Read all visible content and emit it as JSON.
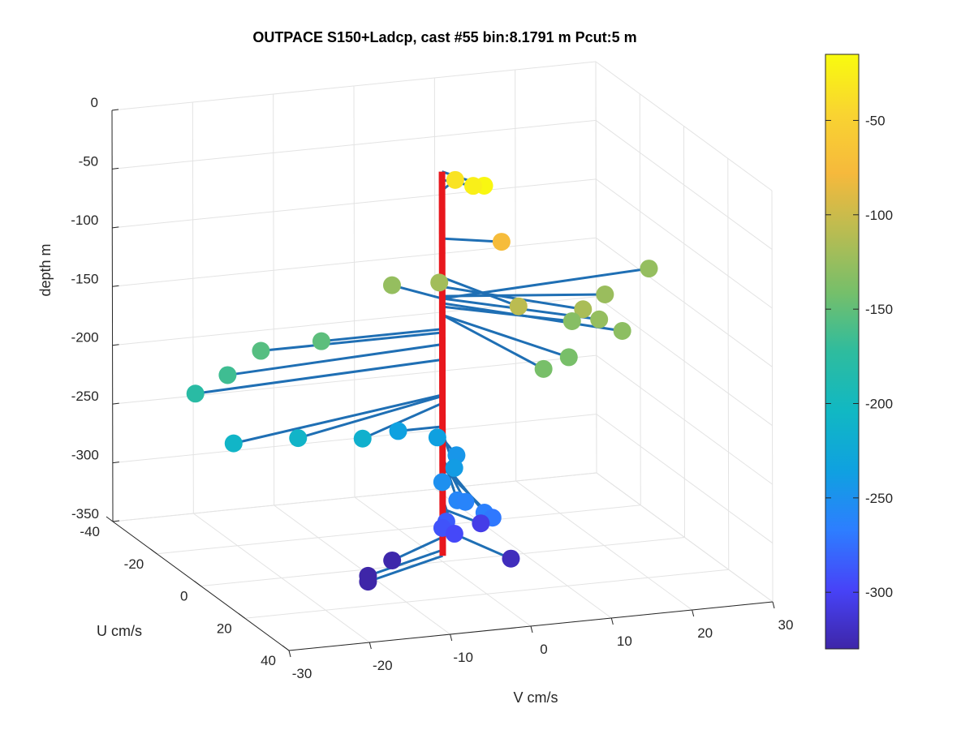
{
  "chart_data": {
    "type": "scatter",
    "title": "OUTPACE S150+Ladcp, cast #55 bin:8.1791 m  Pcut:5 m",
    "xlabel": "V cm/s",
    "ylabel": "U cm/s",
    "zlabel": "depth m",
    "xlim": [
      -30,
      30
    ],
    "ylim": [
      -40,
      40
    ],
    "zlim": [
      -350,
      0
    ],
    "xticks": [
      "-30",
      "-20",
      "-10",
      "0",
      "10",
      "20",
      "30"
    ],
    "yticks": [
      "-40",
      "-20",
      "0",
      "20",
      "40"
    ],
    "zticks": [
      "0",
      "-50",
      "-100",
      "-150",
      "-200",
      "-250",
      "-300",
      "-350"
    ],
    "colorbar": {
      "ticks": [
        "-50",
        "-100",
        "-150",
        "-200",
        "-250",
        "-300"
      ],
      "range": [
        -330,
        -15
      ],
      "colormap": [
        "#3e26a8",
        "#4743f8",
        "#2d7eff",
        "#0fa1e0",
        "#11b8c3",
        "#2ebc9e",
        "#76bf6a",
        "#b8bc52",
        "#f6b93c",
        "#f9d431",
        "#f9fb0e"
      ]
    },
    "grid": true,
    "legend": "none",
    "profile_color": "#e8171d",
    "vector_color": "#1f6fb4",
    "vectors": [
      {
        "depth": -18,
        "v": 2.5,
        "u": 10
      },
      {
        "depth": -25,
        "v": 2.5,
        "u": 5
      },
      {
        "depth": -34,
        "v": 3.0,
        "u": -5
      },
      {
        "depth": -75,
        "v": 6.0,
        "u": 5
      },
      {
        "depth": -108,
        "v": 4.0,
        "u": 20
      },
      {
        "depth": -116,
        "v": 12.0,
        "u": 20
      },
      {
        "depth": -120,
        "v": 1.0,
        "u": -5
      },
      {
        "depth": -124,
        "v": 18.0,
        "u": 8
      },
      {
        "depth": -126,
        "v": 27.0,
        "u": -5
      },
      {
        "depth": -126,
        "v": 14.0,
        "u": 20
      },
      {
        "depth": -130,
        "v": 15.5,
        "u": 25
      },
      {
        "depth": -133,
        "v": 12.0,
        "u": 15
      },
      {
        "depth": -140,
        "v": 3.0,
        "u": 35
      },
      {
        "depth": -140,
        "v": 7.5,
        "u": 30
      },
      {
        "depth": -126,
        "v": -3.5,
        "u": -10
      },
      {
        "depth": -152,
        "v": -15.0,
        "u": 0
      },
      {
        "depth": -155,
        "v": -22.5,
        "u": 0
      },
      {
        "depth": -165,
        "v": -28.0,
        "u": 5
      },
      {
        "depth": -178,
        "v": -32.0,
        "u": 5
      },
      {
        "depth": -208,
        "v": -30.0,
        "u": 15
      },
      {
        "depth": -209,
        "v": -22.0,
        "u": 15
      },
      {
        "depth": -215,
        "v": -14.0,
        "u": 15
      },
      {
        "depth": -235,
        "v": -5.5,
        "u": 0
      },
      {
        "depth": -236,
        "v": -2.0,
        "u": 5
      },
      {
        "depth": -245,
        "v": -1.0,
        "u": 10
      },
      {
        "depth": -240,
        "v": -4.0,
        "u": 20
      },
      {
        "depth": -251,
        "v": -5.5,
        "u": 20
      },
      {
        "depth": -260,
        "v": -5.0,
        "u": 25
      },
      {
        "depth": -262,
        "v": -4.0,
        "u": 25
      },
      {
        "depth": -265,
        "v": -3.0,
        "u": 30
      },
      {
        "depth": -270,
        "v": -2.0,
        "u": 30
      },
      {
        "depth": -285,
        "v": -5.0,
        "u": 20
      },
      {
        "depth": -290,
        "v": -5.5,
        "u": 20
      },
      {
        "depth": -296,
        "v": -4.0,
        "u": 20
      },
      {
        "depth": -305,
        "v": 2.0,
        "u": 10
      },
      {
        "depth": -322,
        "v": 3.0,
        "u": 20
      },
      {
        "depth": -329,
        "v": -9.0,
        "u": 10
      },
      {
        "depth": -340,
        "v": -12.0,
        "u": 10
      },
      {
        "depth": -345,
        "v": -12.0,
        "u": 10
      }
    ]
  }
}
